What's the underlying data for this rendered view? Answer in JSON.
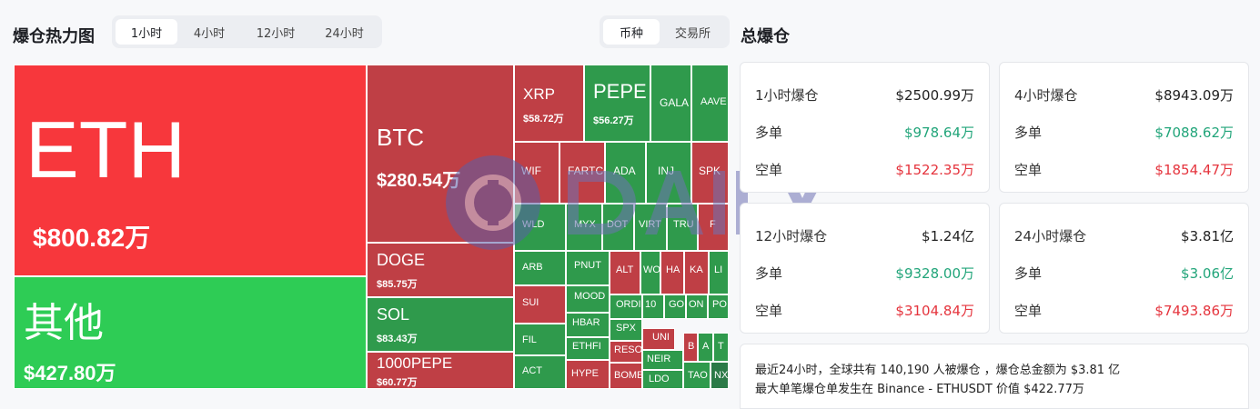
{
  "header": {
    "heatmap_title": "爆仓热力图",
    "total_title": "总爆仓",
    "time_tabs": [
      "1小时",
      "4小时",
      "12小时",
      "24小时"
    ],
    "active_time_tab": 0,
    "type_tabs": [
      "币种",
      "交易所"
    ],
    "active_type_tab": 0
  },
  "treemap": [
    {
      "name": "ETH",
      "value": "$800.82万",
      "color": "bigred"
    },
    {
      "name": "其他",
      "value": "$427.80万",
      "color": "biggreen"
    },
    {
      "name": "BTC",
      "value": "$280.54万",
      "color": "red"
    },
    {
      "name": "DOGE",
      "value": "$85.75万",
      "color": "red"
    },
    {
      "name": "SOL",
      "value": "$83.43万",
      "color": "green"
    },
    {
      "name": "1000PEPE",
      "value": "$60.77万",
      "color": "red"
    },
    {
      "name": "XRP",
      "value": "$58.72万",
      "color": "red"
    },
    {
      "name": "PEPE",
      "value": "$56.27万",
      "color": "green"
    },
    {
      "name": "GALA",
      "value": "",
      "color": "green"
    },
    {
      "name": "AAVE",
      "value": "",
      "color": "green"
    },
    {
      "name": "WIF",
      "value": "",
      "color": "red"
    },
    {
      "name": "FARTCO",
      "value": "",
      "color": "red"
    },
    {
      "name": "ADA",
      "value": "",
      "color": "green"
    },
    {
      "name": "INJ",
      "value": "",
      "color": "green"
    },
    {
      "name": "SPK",
      "value": "",
      "color": "red"
    },
    {
      "name": "WLD",
      "value": "",
      "color": "green"
    },
    {
      "name": "MYX",
      "value": "",
      "color": "green"
    },
    {
      "name": "DOT",
      "value": "",
      "color": "green"
    },
    {
      "name": "VIRT",
      "value": "",
      "color": "green"
    },
    {
      "name": "TRU",
      "value": "",
      "color": "green"
    },
    {
      "name": "F",
      "value": "",
      "color": "red"
    },
    {
      "name": "ARB",
      "value": "",
      "color": "green"
    },
    {
      "name": "PNUT",
      "value": "",
      "color": "green"
    },
    {
      "name": "ALT",
      "value": "",
      "color": "red"
    },
    {
      "name": "WO",
      "value": "",
      "color": "green"
    },
    {
      "name": "HA",
      "value": "",
      "color": "red"
    },
    {
      "name": "KA",
      "value": "",
      "color": "red"
    },
    {
      "name": "LI",
      "value": "",
      "color": "green"
    },
    {
      "name": "SUI",
      "value": "",
      "color": "red"
    },
    {
      "name": "MOOD",
      "value": "",
      "color": "green"
    },
    {
      "name": "ORDI",
      "value": "",
      "color": "green"
    },
    {
      "name": "10",
      "value": "",
      "color": "green"
    },
    {
      "name": "GO",
      "value": "",
      "color": "green"
    },
    {
      "name": "ON",
      "value": "",
      "color": "green"
    },
    {
      "name": "PO",
      "value": "",
      "color": "green"
    },
    {
      "name": "HBAR",
      "value": "",
      "color": "green"
    },
    {
      "name": "SPX",
      "value": "",
      "color": "green"
    },
    {
      "name": "FIL",
      "value": "",
      "color": "green"
    },
    {
      "name": "ETHFI",
      "value": "",
      "color": "green"
    },
    {
      "name": "RESO",
      "value": "",
      "color": "red"
    },
    {
      "name": "UNI",
      "value": "",
      "color": "red"
    },
    {
      "name": "B",
      "value": "",
      "color": "red"
    },
    {
      "name": "A",
      "value": "",
      "color": "green"
    },
    {
      "name": "T",
      "value": "",
      "color": "green"
    },
    {
      "name": "NEIR",
      "value": "",
      "color": "green"
    },
    {
      "name": "ACT",
      "value": "",
      "color": "green"
    },
    {
      "name": "HYPE",
      "value": "",
      "color": "red"
    },
    {
      "name": "BOME",
      "value": "",
      "color": "red"
    },
    {
      "name": "LDO",
      "value": "",
      "color": "green"
    },
    {
      "name": "TAO",
      "value": "",
      "color": "green"
    },
    {
      "name": "NX",
      "value": "",
      "color": "darkgreen"
    }
  ],
  "stats": [
    {
      "label": "1小时爆仓",
      "total": "$2500.99万",
      "long_label": "多单",
      "long": "$978.64万",
      "short_label": "空单",
      "short": "$1522.35万"
    },
    {
      "label": "4小时爆仓",
      "total": "$8943.09万",
      "long_label": "多单",
      "long": "$7088.62万",
      "short_label": "空单",
      "short": "$1854.47万"
    },
    {
      "label": "12小时爆仓",
      "total": "$1.24亿",
      "long_label": "多单",
      "long": "$9328.00万",
      "short_label": "空单",
      "short": "$3104.84万"
    },
    {
      "label": "24小时爆仓",
      "total": "$3.81亿",
      "long_label": "多单",
      "long": "$3.06亿",
      "short_label": "空单",
      "short": "$7493.86万"
    }
  ],
  "summary": {
    "line1": "最近24小时，全球共有 140,190 人被爆仓 ，爆仓总金额为 $3.81 亿",
    "line2": "最大单笔爆仓单发生在 Binance - ETHUSDT 价值 $422.77万"
  },
  "colors": {
    "long": "#22a57a",
    "short": "#e5343d",
    "red_cell": "#bf3f45",
    "green_cell": "#2f9a4c",
    "eth_cell": "#f7373c",
    "other_cell": "#2ecc55"
  }
}
